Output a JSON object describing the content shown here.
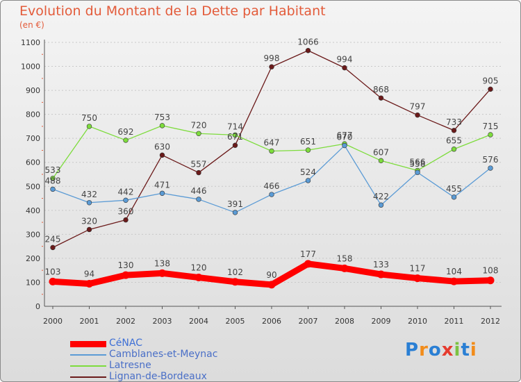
{
  "title": "Evolution du Montant de la Dette par Habitant",
  "unit_label": "(en €)",
  "brand": "Proxiti",
  "chart_data": {
    "type": "line",
    "title": "Evolution du Montant de la Dette par Habitant",
    "ylabel": "(en €)",
    "xlabel": "",
    "x": [
      "2000",
      "2001",
      "2002",
      "2003",
      "2004",
      "2005",
      "2006",
      "2007",
      "2008",
      "2009",
      "2010",
      "2011",
      "2012"
    ],
    "ylim": [
      0,
      1100
    ],
    "yticks": [
      0,
      100,
      200,
      300,
      400,
      500,
      600,
      700,
      800,
      900,
      1000,
      1100
    ],
    "grid": true,
    "legend_position": "bottom-left",
    "series": [
      {
        "name": "CéNAC",
        "color": "#ff0000",
        "values": [
          103,
          94,
          130,
          138,
          120,
          102,
          90,
          177,
          158,
          133,
          117,
          104,
          108
        ]
      },
      {
        "name": "Camblanes-et-Meynac",
        "color": "#5b9bd5",
        "values": [
          488,
          432,
          442,
          471,
          446,
          391,
          466,
          524,
          670,
          422,
          558,
          455,
          576
        ]
      },
      {
        "name": "Latresne",
        "color": "#7ddc3c",
        "values": [
          533,
          750,
          692,
          753,
          720,
          714,
          647,
          651,
          677,
          607,
          566,
          655,
          715
        ]
      },
      {
        "name": "Lignan-de-Bordeaux",
        "color": "#6b1a1a",
        "values": [
          245,
          320,
          360,
          630,
          557,
          671,
          998,
          1066,
          994,
          868,
          797,
          733,
          905
        ]
      }
    ]
  }
}
